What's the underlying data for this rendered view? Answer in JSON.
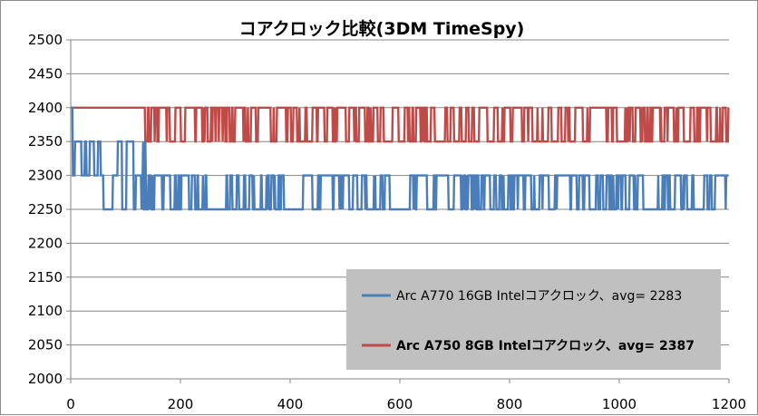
{
  "chart_data": {
    "type": "line",
    "title": "コアクロック比較(3DM TimeSpy)",
    "xlabel": "",
    "ylabel": "",
    "xlim": [
      0,
      1200
    ],
    "ylim": [
      2000,
      2500
    ],
    "x_ticks": [
      0,
      200,
      400,
      600,
      800,
      1000,
      1200
    ],
    "y_ticks": [
      2000,
      2050,
      2100,
      2150,
      2200,
      2250,
      2300,
      2350,
      2400,
      2450,
      2500
    ],
    "grid": "horizontal",
    "legend_position": "bottom-right",
    "series": [
      {
        "name": "Arc A770 16GB Intelコアクロック、avg= 2283",
        "color": "#4a7ebb",
        "values_by_segment": [
          {
            "x_start": 0,
            "x_end": 4,
            "values": [
              2400,
              2350
            ]
          },
          {
            "x_start": 4,
            "x_end": 50,
            "values": [
              2300,
              2350
            ]
          },
          {
            "x_start": 50,
            "x_end": 150,
            "values": [
              2300,
              2250,
              2350
            ]
          },
          {
            "x_start": 150,
            "x_end": 1200,
            "values": [
              2300,
              2250
            ]
          }
        ],
        "average": 2283
      },
      {
        "name": "Arc A750 8GB Intelコアクロック、avg= 2387",
        "color": "#be4b48",
        "values_by_segment": [
          {
            "x_start": 0,
            "x_end": 135,
            "values": [
              2400
            ]
          },
          {
            "x_start": 135,
            "x_end": 1200,
            "values": [
              2400,
              2350
            ]
          }
        ],
        "average": 2387
      }
    ],
    "colors": {
      "legend_background": "#c0c0c0",
      "grid": "#868686",
      "axis": "#868686"
    }
  }
}
